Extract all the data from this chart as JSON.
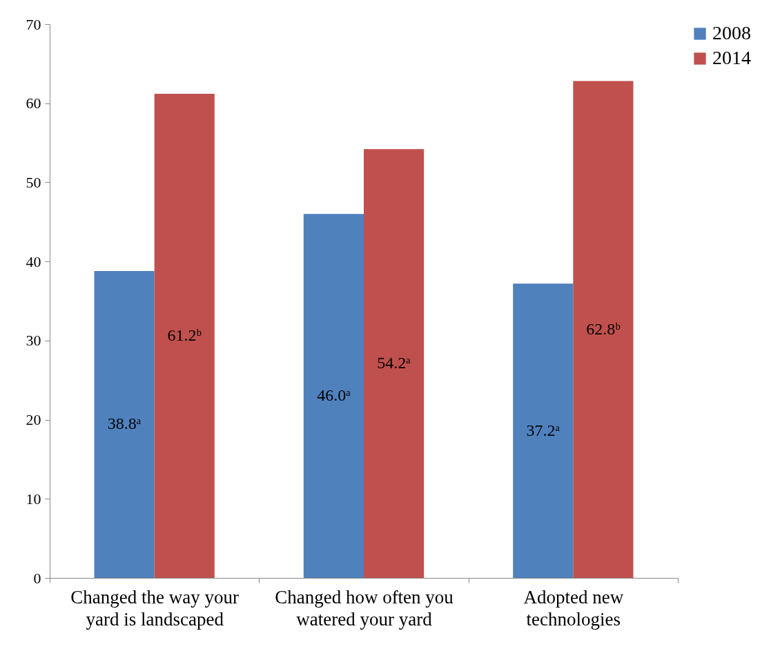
{
  "chart_data": {
    "type": "bar",
    "categories": [
      "Changed the way your yard is landscaped",
      "Changed how often you watered your yard",
      "Adopted new technologies"
    ],
    "series": [
      {
        "name": "2008",
        "color": "#4f81bd",
        "values": [
          38.8,
          46.0,
          37.2
        ],
        "value_labels": [
          "38.8ᵃ",
          "46.0ᵃ",
          "37.2ᵃ"
        ]
      },
      {
        "name": "2014",
        "color": "#c0504d",
        "values": [
          61.2,
          54.2,
          62.8
        ],
        "value_labels": [
          "61.2ᵇ",
          "54.2ᵃ",
          "62.8ᵇ"
        ]
      }
    ],
    "ylim": [
      0,
      70
    ],
    "yticks": [
      0,
      10,
      20,
      30,
      40,
      50,
      60,
      70
    ],
    "grid": false,
    "legend": "right"
  }
}
